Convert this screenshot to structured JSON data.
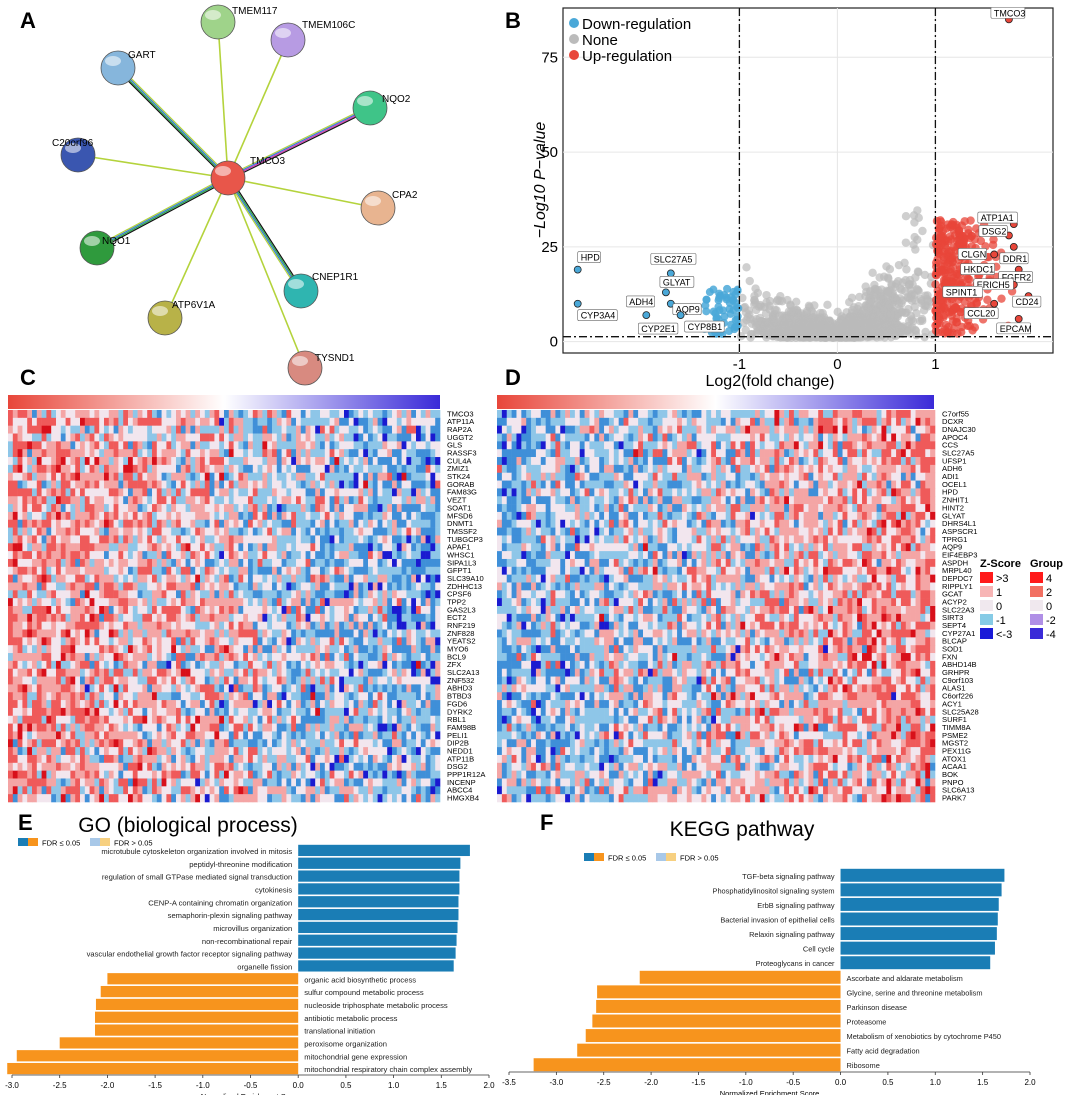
{
  "colors": {
    "down": "#4aa8d8",
    "none": "#bbbbbb",
    "up": "#e8463a",
    "fdr_sig_up": "#1a7db5",
    "fdr_sig_down": "#f7941d",
    "fdr_ns_up": "#a8c8e8",
    "fdr_ns_down": "#f7d080"
  },
  "panel_labels": {
    "a": "A",
    "b": "B",
    "c": "C",
    "d": "D",
    "e": "E",
    "f": "F"
  },
  "network": {
    "center": "TMCO3",
    "nodes": [
      "TMEM117",
      "TMEM106C",
      "GART",
      "NQO2",
      "C20orf96",
      "CPA2",
      "NQO1",
      "CNEP1R1",
      "ATP6V1A",
      "TYSND1"
    ]
  },
  "chart_data": [
    {
      "id": "B",
      "type": "scatter",
      "title": "",
      "xlabel": "Log2(fold change)",
      "ylabel": "−Log10 P−value",
      "xlim": [
        -2.8,
        2.2
      ],
      "ylim": [
        -3,
        88
      ],
      "xticks": [
        -1,
        0,
        1
      ],
      "yticks": [
        0,
        25,
        50,
        75
      ],
      "thresholds": {
        "x": [
          -1,
          1
        ],
        "y": 1.3
      },
      "legend": [
        "Down-regulation",
        "None",
        "Up-regulation"
      ],
      "labeled_points": [
        {
          "label": "TMCO3",
          "x": 1.75,
          "y": 85
        },
        {
          "label": "ATP1A1",
          "x": 1.8,
          "y": 31
        },
        {
          "label": "DSG2",
          "x": 1.75,
          "y": 28
        },
        {
          "label": "DDR1",
          "x": 1.8,
          "y": 25
        },
        {
          "label": "CLGN",
          "x": 1.6,
          "y": 23
        },
        {
          "label": "FGFR2",
          "x": 1.85,
          "y": 19
        },
        {
          "label": "HKDC1",
          "x": 1.4,
          "y": 19
        },
        {
          "label": "ERICH5",
          "x": 1.8,
          "y": 15
        },
        {
          "label": "CD24",
          "x": 1.95,
          "y": 12
        },
        {
          "label": "SPINT1",
          "x": 1.3,
          "y": 13
        },
        {
          "label": "CCL20",
          "x": 1.6,
          "y": 10
        },
        {
          "label": "EPCAM",
          "x": 1.85,
          "y": 6
        },
        {
          "label": "HPD",
          "x": -2.65,
          "y": 19
        },
        {
          "label": "SLC27A5",
          "x": -1.7,
          "y": 18
        },
        {
          "label": "GLYAT",
          "x": -1.75,
          "y": 13
        },
        {
          "label": "CYP3A4",
          "x": -2.65,
          "y": 10
        },
        {
          "label": "ADH4",
          "x": -1.95,
          "y": 11
        },
        {
          "label": "AQP9",
          "x": -1.7,
          "y": 10
        },
        {
          "label": "CYP2E1",
          "x": -1.95,
          "y": 7
        },
        {
          "label": "CYP8B1",
          "x": -1.6,
          "y": 7
        }
      ]
    },
    {
      "id": "E",
      "type": "bar",
      "title": "GO (biological process)",
      "xlabel": "Normalized Enrichment Score",
      "xlim": [
        -3.0,
        2.0
      ],
      "xticks": [
        -3.0,
        -2.5,
        -2.0,
        -1.5,
        -1.0,
        -0.5,
        0.0,
        0.5,
        1.0,
        1.5,
        2.0
      ],
      "legend": [
        "FDR ≤ 0.05",
        "FDR > 0.05"
      ],
      "categories": [
        "microtubule cytoskeleton organization involved in mitosis",
        "peptidyl-threonine modification",
        "regulation of small GTPase mediated signal transduction",
        "cytokinesis",
        "CENP-A containing chromatin organization",
        "semaphorin-plexin signaling pathway",
        "microvillus organization",
        "non-recombinational repair",
        "vascular endothelial growth factor receptor signaling pathway",
        "organelle fission",
        "organic acid biosynthetic process",
        "sulfur compound metabolic process",
        "nucleoside triphosphate metabolic process",
        "antibiotic metabolic process",
        "translational initiation",
        "peroxisome organization",
        "mitochondrial gene expression",
        "mitochondrial respiratory chain complex assembly"
      ],
      "values": [
        1.8,
        1.7,
        1.69,
        1.69,
        1.68,
        1.68,
        1.67,
        1.66,
        1.65,
        1.63,
        -2.0,
        -2.07,
        -2.12,
        -2.13,
        -2.13,
        -2.5,
        -2.95,
        -3.05
      ]
    },
    {
      "id": "F",
      "type": "bar",
      "title": "KEGG pathway",
      "xlabel": "Normalized Enrichment Score",
      "xlim": [
        -3.5,
        2.0
      ],
      "xticks": [
        -3.5,
        -3.0,
        -2.5,
        -2.0,
        -1.5,
        -1.0,
        -0.5,
        0.0,
        0.5,
        1.0,
        1.5,
        2.0
      ],
      "legend": [
        "FDR ≤ 0.05",
        "FDR > 0.05"
      ],
      "categories": [
        "TGF-beta signaling pathway",
        "Phosphatidylinositol signaling system",
        "ErbB signaling pathway",
        "Bacterial invasion of epithelial cells",
        "Relaxin signaling pathway",
        "Cell cycle",
        "Proteoglycans in cancer",
        "Ascorbate and aldarate metabolism",
        "Glycine, serine and threonine metabolism",
        "Parkinson disease",
        "Proteasome",
        "Metabolism of xenobiotics by cytochrome P450",
        "Fatty acid degradation",
        "Ribosome"
      ],
      "values": [
        1.73,
        1.7,
        1.67,
        1.66,
        1.65,
        1.63,
        1.58,
        -2.12,
        -2.57,
        -2.58,
        -2.62,
        -2.69,
        -2.78,
        -3.24
      ]
    },
    {
      "id": "C",
      "type": "heatmap",
      "rows": [
        "TMCO3",
        "ATP11A",
        "RAP2A",
        "UGGT2",
        "GLS",
        "RASSF3",
        "CUL4A",
        "ZMIZ1",
        "STK24",
        "GORAB",
        "FAM83G",
        "VEZT",
        "SOAT1",
        "MFSD6",
        "DNMT1",
        "TMSSF2",
        "TUBGCP3",
        "APAF1",
        "WHSC1",
        "SIPA1L3",
        "GFPT1",
        "SLC39A10",
        "ZDHHC13",
        "CPSF6",
        "TPP2",
        "GAS2L3",
        "ECT2",
        "RNF219",
        "ZNF828",
        "YEATS2",
        "MYO6",
        "BCL9",
        "ZFX",
        "SLC2A13",
        "ZNF532",
        "ABHD3",
        "BTBD3",
        "FGD6",
        "DYRK2",
        "RBL1",
        "FAM98B",
        "PELI1",
        "DIP2B",
        "NEDD1",
        "ATP11B",
        "DSG2",
        "PPP1R12A",
        "INCENP",
        "ABCC4",
        "HMGXB4"
      ]
    },
    {
      "id": "D",
      "type": "heatmap",
      "rows": [
        "C7orf55",
        "DCXR",
        "DNAJC30",
        "APOC4",
        "CCS",
        "SLC27A5",
        "UFSP1",
        "ADH6",
        "ADI1",
        "OCEL1",
        "HPD",
        "ZNHIT1",
        "HINT2",
        "GLYAT",
        "DHRS4L1",
        "ASPSCR1",
        "TPRG1",
        "AQP9",
        "EIF4EBP3",
        "ASPDH",
        "MRPL40",
        "DEPDC7",
        "RIPPLY1",
        "GCAT",
        "ACYP2",
        "SLC22A3",
        "SIRT3",
        "SEPT4",
        "CYP27A1",
        "BLCAP",
        "SOD1",
        "FXN",
        "ABHD14B",
        "GRHPR",
        "C9orf103",
        "ALAS1",
        "C6orf226",
        "ACY1",
        "SLC25A28",
        "SURF1",
        "TIMM8A",
        "PSME2",
        "MGST2",
        "PEX11G",
        "ATOX1",
        "ACAA1",
        "BOK",
        "PNPO",
        "SLC6A13",
        "PARK7"
      ],
      "zscore_legend": {
        "title": "Z-Score",
        "labels": [
          ">3",
          "1",
          "0",
          "-1",
          "<-3"
        ]
      },
      "group_legend": {
        "title": "Group",
        "labels": [
          "4",
          "2",
          "0",
          "-2",
          "-4"
        ]
      }
    }
  ]
}
